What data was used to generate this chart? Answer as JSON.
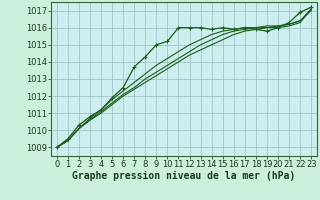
{
  "background_color": "#cceedd",
  "plot_background": "#cceeee",
  "grid_color": "#99bbbb",
  "line_color": "#1a5c1a",
  "marker_color": "#1a5c1a",
  "xlabel": "Graphe pression niveau de la mer (hPa)",
  "xlabel_fontsize": 7,
  "tick_fontsize": 6,
  "xlim": [
    -0.5,
    23.5
  ],
  "ylim": [
    1008.5,
    1017.5
  ],
  "yticks": [
    1009,
    1010,
    1011,
    1012,
    1013,
    1014,
    1015,
    1016,
    1017
  ],
  "xticks": [
    0,
    1,
    2,
    3,
    4,
    5,
    6,
    7,
    8,
    9,
    10,
    11,
    12,
    13,
    14,
    15,
    16,
    17,
    18,
    19,
    20,
    21,
    22,
    23
  ],
  "series_marked": [
    1009.0,
    1009.5,
    1010.3,
    1010.8,
    1011.2,
    1011.9,
    1012.5,
    1013.7,
    1014.3,
    1015.0,
    1015.2,
    1016.0,
    1016.0,
    1016.0,
    1015.9,
    1016.0,
    1015.9,
    1016.0,
    1015.9,
    1015.8,
    1016.0,
    1016.3,
    1016.9,
    1017.2
  ],
  "series2": [
    1009.0,
    1009.4,
    1010.1,
    1010.6,
    1011.1,
    1011.6,
    1012.1,
    1012.5,
    1013.0,
    1013.4,
    1013.8,
    1014.2,
    1014.6,
    1015.0,
    1015.3,
    1015.6,
    1015.8,
    1015.9,
    1016.0,
    1016.1,
    1016.1,
    1016.2,
    1016.4,
    1017.1
  ],
  "series3": [
    1009.0,
    1009.4,
    1010.1,
    1010.7,
    1011.2,
    1011.8,
    1012.3,
    1012.8,
    1013.3,
    1013.8,
    1014.2,
    1014.6,
    1015.0,
    1015.3,
    1015.6,
    1015.8,
    1015.9,
    1016.0,
    1016.0,
    1016.0,
    1016.1,
    1016.2,
    1016.4,
    1017.0
  ],
  "series4": [
    1009.0,
    1009.4,
    1010.1,
    1010.6,
    1011.0,
    1011.5,
    1012.0,
    1012.4,
    1012.8,
    1013.2,
    1013.6,
    1014.0,
    1014.4,
    1014.7,
    1015.0,
    1015.3,
    1015.6,
    1015.8,
    1015.9,
    1016.0,
    1016.0,
    1016.1,
    1016.3,
    1017.1
  ]
}
